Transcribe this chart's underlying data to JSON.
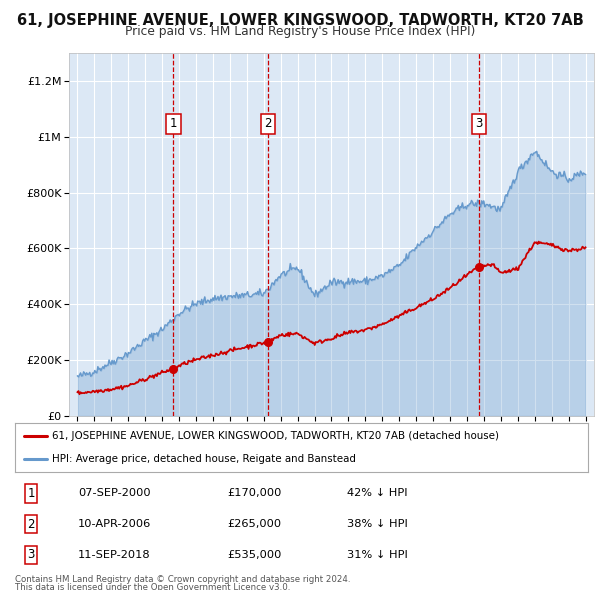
{
  "title": "61, JOSEPHINE AVENUE, LOWER KINGSWOOD, TADWORTH, KT20 7AB",
  "subtitle": "Price paid vs. HM Land Registry's House Price Index (HPI)",
  "ylim": [
    0,
    1300000
  ],
  "xlim": [
    1994.5,
    2025.5
  ],
  "yticks": [
    0,
    200000,
    400000,
    600000,
    800000,
    1000000,
    1200000
  ],
  "ytick_labels": [
    "£0",
    "£200K",
    "£400K",
    "£600K",
    "£800K",
    "£1M",
    "£1.2M"
  ],
  "background_color": "#ffffff",
  "plot_bg_color": "#dce8f5",
  "grid_color": "#ffffff",
  "sale_color": "#cc0000",
  "hpi_color": "#6699cc",
  "sale_label": "61, JOSEPHINE AVENUE, LOWER KINGSWOOD, TADWORTH, KT20 7AB (detached house)",
  "hpi_label": "HPI: Average price, detached house, Reigate and Banstead",
  "transactions": [
    {
      "num": 1,
      "date": "07-SEP-2000",
      "price": 170000,
      "pct": "42%",
      "year": 2000.67
    },
    {
      "num": 2,
      "date": "10-APR-2006",
      "price": 265000,
      "pct": "38%",
      "year": 2006.27
    },
    {
      "num": 3,
      "date": "11-SEP-2018",
      "price": 535000,
      "pct": "31%",
      "year": 2018.69
    }
  ],
  "footer1": "Contains HM Land Registry data © Crown copyright and database right 2024.",
  "footer2": "This data is licensed under the Open Government Licence v3.0."
}
